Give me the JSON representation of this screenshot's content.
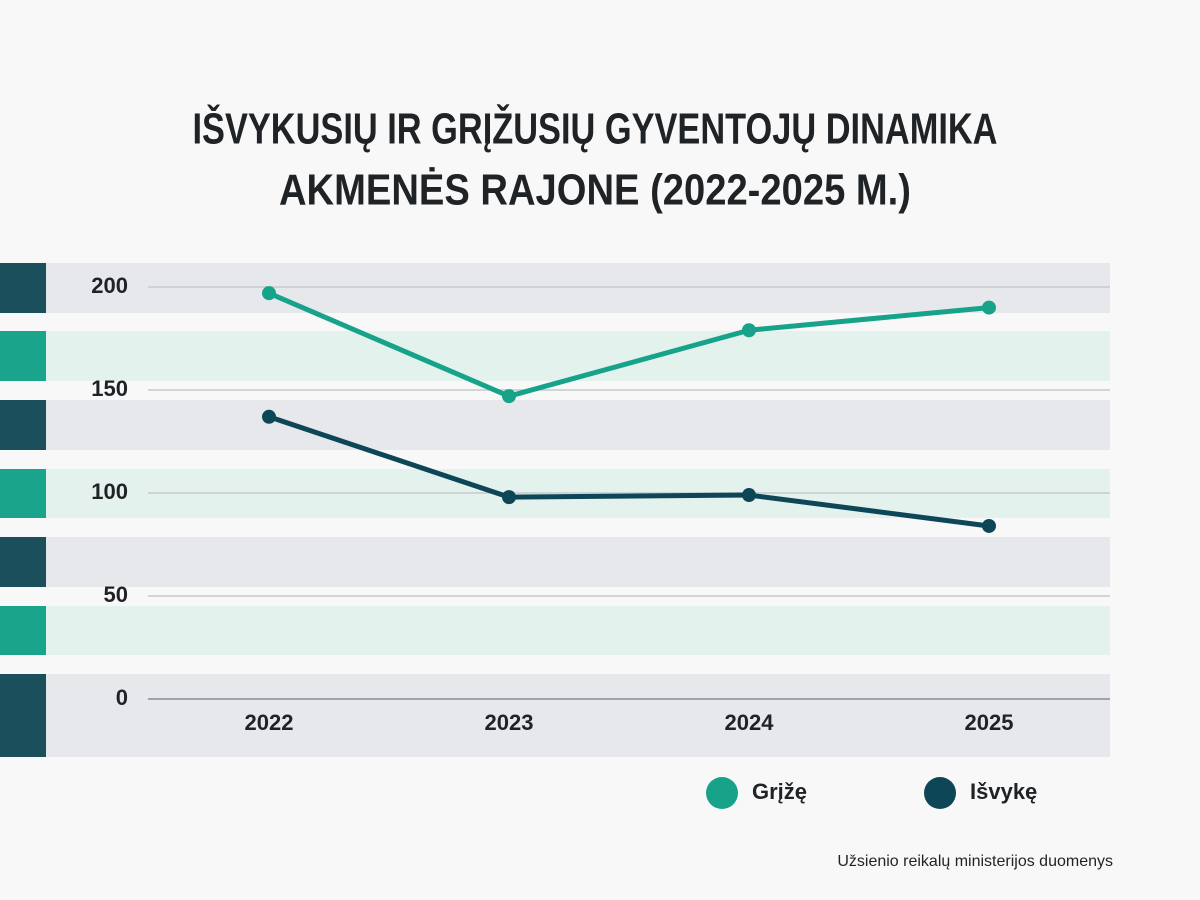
{
  "chart_data": {
    "type": "line",
    "title": [
      "IŠVYKUSIŲ IR GRĮŽUSIŲ GYVENTOJŲ DINAMIKA",
      "AKMENĖS RAJONE (2022-2025 M.)"
    ],
    "categories": [
      "2022",
      "2023",
      "2024",
      "2025"
    ],
    "series": [
      {
        "name": "Grįžę",
        "color": "#17a38a",
        "values": [
          197,
          147,
          179,
          190
        ]
      },
      {
        "name": "Išvykę",
        "color": "#0d4757",
        "values": [
          137,
          98,
          99,
          84
        ]
      }
    ],
    "ylim": [
      0,
      200
    ],
    "yticks": [
      0,
      50,
      100,
      150,
      200
    ],
    "grid": true,
    "source": "Užsienio reikalų ministerijos duomenys"
  }
}
